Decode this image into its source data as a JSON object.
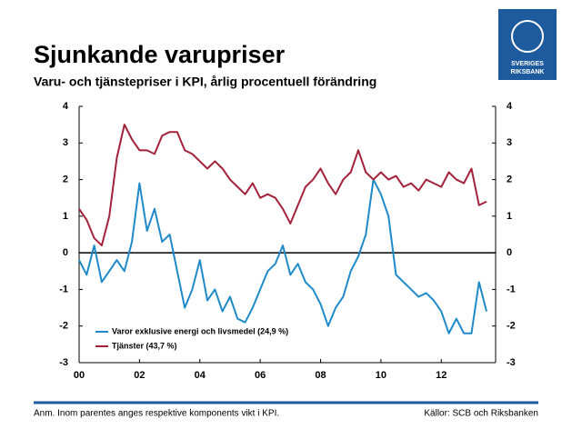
{
  "chart_data": {
    "type": "line",
    "title": "Sjunkande varupriser",
    "subtitle": "Varu- och tjänstepriser i KPI, årlig procentuell förändring",
    "logo_text": [
      "SVERIGES",
      "RIKSBANK"
    ],
    "note": "Anm. Inom parentes anges respektive komponents vikt i KPI.",
    "source": "Källor: SCB och Riksbanken",
    "x": [
      2000,
      2000.25,
      2000.5,
      2000.75,
      2001,
      2001.25,
      2001.5,
      2001.75,
      2002,
      2002.25,
      2002.5,
      2002.75,
      2003,
      2003.25,
      2003.5,
      2003.75,
      2004,
      2004.25,
      2004.5,
      2004.75,
      2005,
      2005.25,
      2005.5,
      2005.75,
      2006,
      2006.25,
      2006.5,
      2006.75,
      2007,
      2007.25,
      2007.5,
      2007.75,
      2008,
      2008.25,
      2008.5,
      2008.75,
      2009,
      2009.25,
      2009.5,
      2009.75,
      2010,
      2010.25,
      2010.5,
      2010.75,
      2011,
      2011.25,
      2011.5,
      2011.75,
      2012,
      2012.25,
      2012.5,
      2012.75,
      2013,
      2013.25,
      2013.5
    ],
    "series": [
      {
        "name": "Varor exklusive energi och livsmedel (24,9 %)",
        "color": "#1f8ac9",
        "values": [
          -0.2,
          -0.6,
          0.2,
          -0.8,
          -0.5,
          -0.2,
          -0.5,
          0.3,
          1.9,
          0.6,
          1.2,
          0.3,
          0.5,
          -0.5,
          -1.5,
          -1.0,
          -0.2,
          -1.3,
          -1.0,
          -1.6,
          -1.2,
          -1.8,
          -1.9,
          -1.5,
          -1.0,
          -0.5,
          -0.3,
          0.2,
          -0.6,
          -0.3,
          -0.8,
          -1.0,
          -1.4,
          -2.0,
          -1.5,
          -1.2,
          -0.5,
          -0.1,
          0.5,
          2.0,
          1.6,
          1.0,
          -0.6,
          -0.8,
          -1.0,
          -1.2,
          -1.1,
          -1.3,
          -1.6,
          -2.2,
          -1.8,
          -2.2,
          -2.2,
          -0.8,
          -1.6
        ]
      },
      {
        "name": "Tjänster (43,7 %)",
        "color": "#a3223a",
        "values": [
          1.2,
          0.9,
          0.4,
          0.2,
          1.0,
          2.6,
          3.5,
          3.1,
          2.8,
          2.8,
          2.7,
          3.2,
          3.3,
          3.3,
          2.8,
          2.7,
          2.5,
          2.3,
          2.5,
          2.3,
          2.0,
          1.8,
          1.6,
          1.9,
          1.5,
          1.6,
          1.5,
          1.2,
          0.8,
          1.3,
          1.8,
          2.0,
          2.3,
          1.9,
          1.6,
          2.0,
          2.2,
          2.8,
          2.2,
          2.0,
          2.2,
          2.0,
          2.1,
          1.8,
          1.9,
          1.7,
          2.0,
          1.9,
          1.8,
          2.2,
          2.0,
          1.9,
          2.3,
          1.3,
          1.4
        ]
      }
    ],
    "xlim": [
      2000,
      2013.8
    ],
    "xticks": [
      {
        "value": 2000,
        "label": "00"
      },
      {
        "value": 2002,
        "label": "02"
      },
      {
        "value": 2004,
        "label": "04"
      },
      {
        "value": 2006,
        "label": "06"
      },
      {
        "value": 2008,
        "label": "08"
      },
      {
        "value": 2010,
        "label": "10"
      },
      {
        "value": 2012,
        "label": "12"
      }
    ],
    "ylim": [
      -3,
      4
    ],
    "yticks": [
      -3,
      -2,
      -1,
      0,
      1,
      2,
      3,
      4
    ],
    "legend": "bottom-left"
  }
}
